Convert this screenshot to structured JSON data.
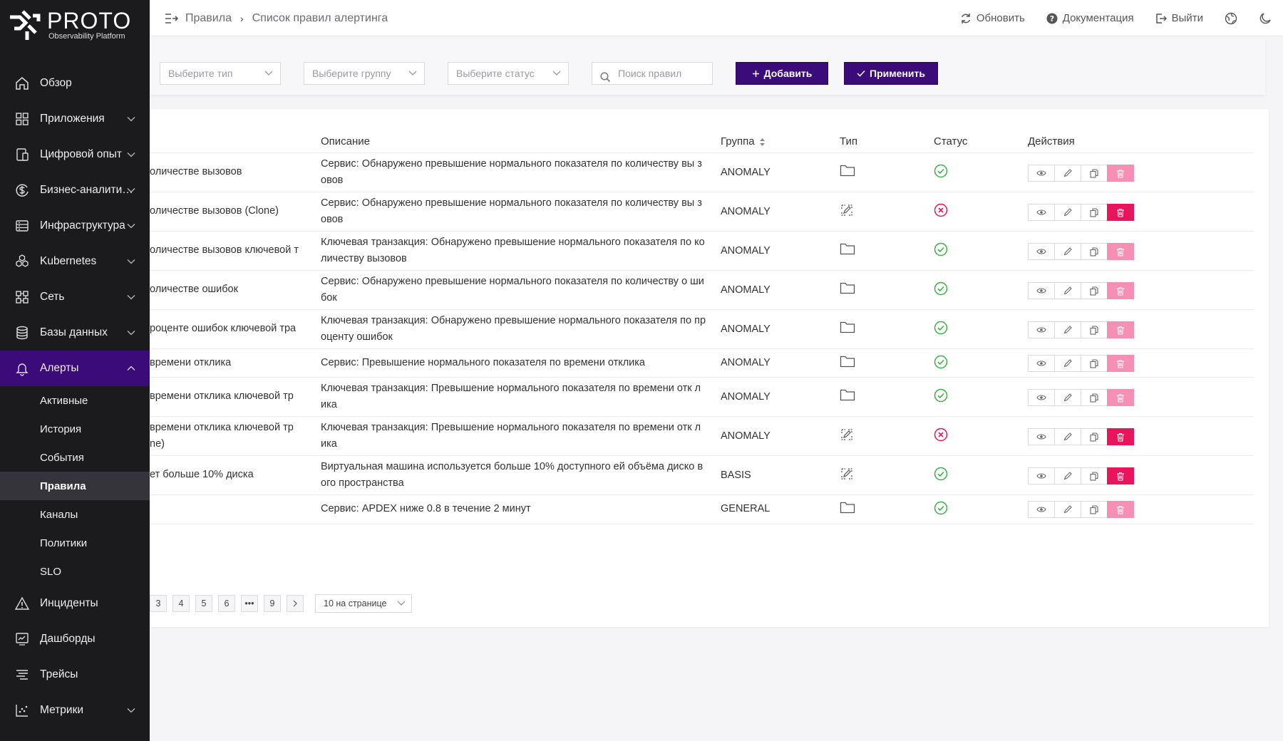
{
  "brand": {
    "title": "PROTO",
    "subtitle": "Observability Platform"
  },
  "breadcrumb": {
    "root": "Правила",
    "current": "Список правил алертинга"
  },
  "header_actions": {
    "refresh": "Обновить",
    "docs": "Документация",
    "logout": "Выйти"
  },
  "sidebar": {
    "items": [
      {
        "label": "Обзор",
        "icon": "home-icon"
      },
      {
        "label": "Приложения",
        "icon": "grid-icon"
      },
      {
        "label": "Цифровой опыт",
        "icon": "devices-icon"
      },
      {
        "label": "Бизнес-аналити…",
        "icon": "dollar-icon"
      },
      {
        "label": "Инфраструктура",
        "icon": "server-icon"
      },
      {
        "label": "Kubernetes",
        "icon": "kubernetes-icon"
      },
      {
        "label": "Сеть",
        "icon": "network-icon"
      },
      {
        "label": "Базы данных",
        "icon": "database-icon"
      },
      {
        "label": "Алерты",
        "icon": "bell-icon"
      }
    ],
    "alert_sub": [
      "Активные",
      "История",
      "События",
      "Правила",
      "Каналы",
      "Политики",
      "SLO"
    ],
    "bottom": [
      {
        "label": "Инциденты",
        "icon": "warning-icon"
      },
      {
        "label": "Дашборды",
        "icon": "dashboard-icon"
      },
      {
        "label": "Трейсы",
        "icon": "traces-icon"
      },
      {
        "label": "Метрики",
        "icon": "metrics-icon"
      }
    ]
  },
  "filters": {
    "type_placeholder": "Выберите тип",
    "group_placeholder": "Выберите группу",
    "status_placeholder": "Выберите статус",
    "search_placeholder": "Поиск правил",
    "add_label": "Добавить",
    "apply_label": "Применить"
  },
  "table": {
    "columns": {
      "description": "Описание",
      "group": "Группа",
      "type": "Тип",
      "status": "Статус",
      "actions": "Действия"
    },
    "rows": [
      {
        "name": "оличестве вызовов",
        "desc": "Сервис: Обнаружено превышение нормального показателя по количеству вы зовов",
        "group": "ANOMALY",
        "type": "folder",
        "status": "ok",
        "delete_enabled": false
      },
      {
        "name": "оличестве вызовов (Clone)",
        "desc": "Сервис: Обнаружено превышение нормального показателя по количеству вы зовов",
        "group": "ANOMALY",
        "type": "edit",
        "status": "error",
        "delete_enabled": true
      },
      {
        "name": "оличестве вызовов ключевой т",
        "desc": "Ключевая транзакция: Обнаружено превышение нормального показателя по количеству вызовов",
        "group": "ANOMALY",
        "type": "folder",
        "status": "ok",
        "delete_enabled": false
      },
      {
        "name": "оличестве ошибок",
        "desc": "Сервис: Обнаружено превышение нормального показателя по количеству о шибок",
        "group": "ANOMALY",
        "type": "folder",
        "status": "ok",
        "delete_enabled": false
      },
      {
        "name": "роценте ошибок ключевой тра",
        "desc": "Ключевая транзакция: Обнаружено превышение нормального показателя по проценту ошибок",
        "group": "ANOMALY",
        "type": "folder",
        "status": "ok",
        "delete_enabled": false
      },
      {
        "name": "времени отклика",
        "desc": "Сервис: Превышение нормального показателя по времени отклика",
        "group": "ANOMALY",
        "type": "folder",
        "status": "ok",
        "delete_enabled": false
      },
      {
        "name": "времени отклика ключевой тр",
        "desc": "Ключевая транзакция: Превышение нормального показателя по времени отк лика",
        "group": "ANOMALY",
        "type": "folder",
        "status": "ok",
        "delete_enabled": false
      },
      {
        "name": "времени отклика ключевой тр",
        "name2": "ne)",
        "desc": "Ключевая транзакция: Превышение нормального показателя по времени отк лика",
        "group": "ANOMALY",
        "type": "edit",
        "status": "error",
        "delete_enabled": true
      },
      {
        "name": "ет больше 10% диска",
        "desc": "Виртуальная машина используется больше 10% доступного ей объёма диско вого пространства",
        "group": "BASIS",
        "type": "edit",
        "status": "ok",
        "delete_enabled": true
      },
      {
        "name": "",
        "desc": "Сервис: APDEX ниже 0.8 в течение 2 минут",
        "group": "GENERAL",
        "type": "folder",
        "status": "ok",
        "delete_enabled": false
      }
    ]
  },
  "pagination": {
    "pages": [
      "3",
      "4",
      "5",
      "6",
      "•••",
      "9"
    ],
    "per_page": "10 на странице"
  },
  "colors": {
    "accent": "#3b0b7a",
    "ok": "#3cb043",
    "error": "#e8155c"
  }
}
